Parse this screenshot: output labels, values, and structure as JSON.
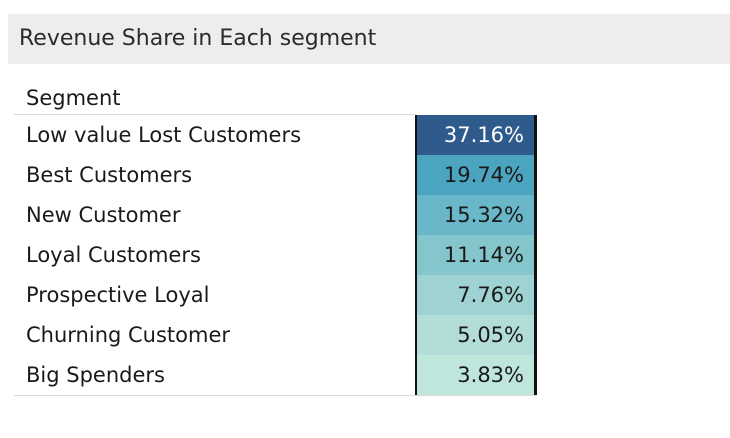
{
  "title": "Revenue Share in Each segment",
  "column_header": "Segment",
  "chart_data": {
    "type": "table",
    "title": "Revenue Share in Each segment",
    "row_header": "Segment",
    "categories": [
      "Low value Lost Customers",
      "Best Customers",
      "New Customer",
      "Loyal Customers",
      "Prospective Loyal",
      "Churning Customer",
      "Big Spenders"
    ],
    "values": [
      37.16,
      19.74,
      15.32,
      11.14,
      7.76,
      5.05,
      3.83
    ],
    "value_labels": [
      "37.16%",
      "19.74%",
      "15.32%",
      "11.14%",
      "7.76%",
      "5.05%",
      "3.83%"
    ],
    "unit": "%",
    "color_scale": {
      "low": "#bfe6dd",
      "high": "#2e5a8c"
    },
    "cell_colors": [
      "#2f5b8c",
      "#4ba5c1",
      "#69b7c8",
      "#85c6cd",
      "#9fd3d3",
      "#b2ddd9",
      "#bfe6dd"
    ],
    "text_colors": [
      "#ffffff",
      "#1a1a1a",
      "#1a1a1a",
      "#1a1a1a",
      "#1a1a1a",
      "#1a1a1a",
      "#1a1a1a"
    ]
  }
}
